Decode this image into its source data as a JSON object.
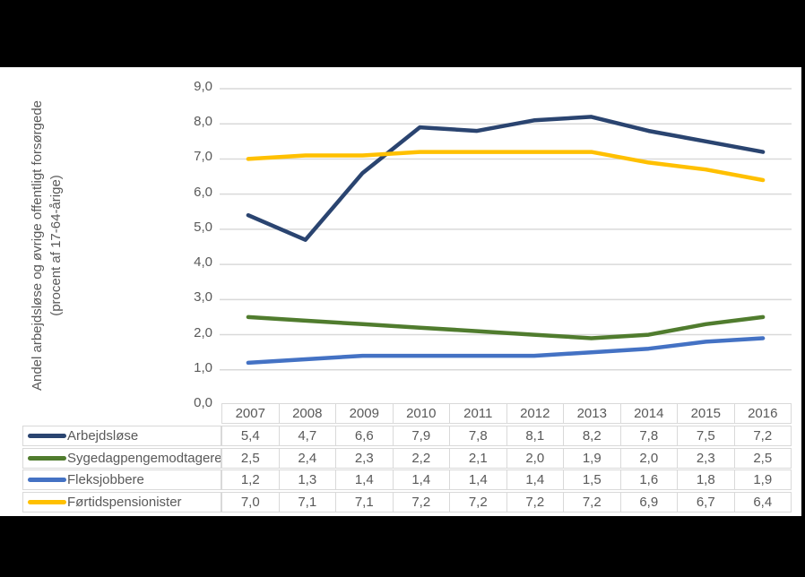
{
  "chart_data": {
    "type": "line",
    "title": "",
    "ylabel_line1": "Andel arbejdsløse og øvrige offentligt forsørgede",
    "ylabel_line2": "(procent af 17-64-årige)",
    "categories": [
      "2007",
      "2008",
      "2009",
      "2010",
      "2011",
      "2012",
      "2013",
      "2014",
      "2015",
      "2016"
    ],
    "series": [
      {
        "name": "Arbejdsløse",
        "color": "#2A4470",
        "values": [
          5.4,
          4.7,
          6.6,
          7.9,
          7.8,
          8.1,
          8.2,
          7.8,
          7.5,
          7.2
        ]
      },
      {
        "name": "Sygedagpengemodtagere",
        "color": "#507C2E",
        "values": [
          2.5,
          2.4,
          2.3,
          2.2,
          2.1,
          2.0,
          1.9,
          2.0,
          2.3,
          2.5
        ]
      },
      {
        "name": "Fleksjobbere",
        "color": "#4472C4",
        "values": [
          1.2,
          1.3,
          1.4,
          1.4,
          1.4,
          1.4,
          1.5,
          1.6,
          1.8,
          1.9
        ]
      },
      {
        "name": "Førtidspensionister",
        "color": "#FFC000",
        "values": [
          7.0,
          7.1,
          7.1,
          7.2,
          7.2,
          7.2,
          7.2,
          6.9,
          6.7,
          6.4
        ]
      }
    ],
    "ylim": [
      0,
      9
    ],
    "ytick_step": 1,
    "decimal_separator": ",",
    "grid": true,
    "legend_position": "table-left",
    "colors": {
      "gridline": "#D9D9D9",
      "axis_text": "#595959",
      "table_border": "#D9D9D9",
      "plot_background": "#FFFFFF",
      "frame": "#000000"
    }
  }
}
